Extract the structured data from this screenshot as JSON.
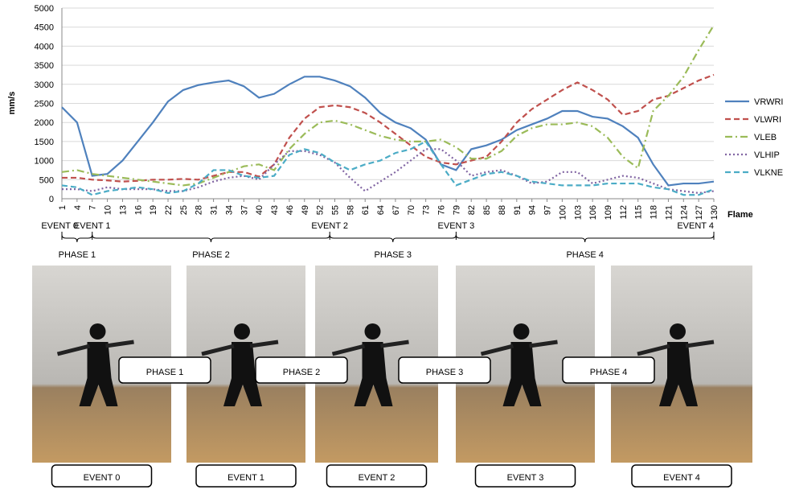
{
  "chart_data": {
    "type": "line",
    "ylabel": "mm/s",
    "xlabel": "Flame",
    "x": [
      1,
      4,
      7,
      10,
      13,
      16,
      19,
      22,
      25,
      28,
      31,
      34,
      37,
      40,
      43,
      46,
      49,
      52,
      55,
      58,
      61,
      64,
      67,
      70,
      73,
      76,
      79,
      82,
      85,
      88,
      91,
      94,
      97,
      100,
      103,
      106,
      109,
      112,
      115,
      118,
      121,
      124,
      127,
      130
    ],
    "xlim": [
      1,
      130
    ],
    "xticks": [
      1,
      4,
      7,
      10,
      13,
      16,
      19,
      22,
      25,
      28,
      31,
      34,
      37,
      40,
      43,
      46,
      49,
      52,
      55,
      58,
      61,
      64,
      67,
      70,
      73,
      76,
      79,
      82,
      85,
      88,
      91,
      94,
      97,
      100,
      103,
      106,
      109,
      112,
      115,
      118,
      121,
      124,
      127,
      130
    ],
    "ylim": [
      0,
      5000
    ],
    "yticks": [
      0,
      500,
      1000,
      1500,
      2000,
      2500,
      3000,
      3500,
      4000,
      4500,
      5000
    ],
    "grid": true,
    "legend": "right",
    "series": [
      {
        "name": "VRWRI",
        "color": "#4f81bd",
        "style": "solid",
        "values": [
          2400,
          2000,
          600,
          650,
          1000,
          1500,
          2000,
          2550,
          2850,
          2980,
          3050,
          3100,
          2950,
          2650,
          2750,
          3000,
          3200,
          3200,
          3100,
          2950,
          2650,
          2250,
          2000,
          1850,
          1550,
          900,
          750,
          1300,
          1400,
          1550,
          1800,
          1950,
          2100,
          2300,
          2300,
          2150,
          2100,
          1900,
          1600,
          900,
          350,
          400,
          400,
          450
        ]
      },
      {
        "name": "VLWRI",
        "color": "#c0504d",
        "style": "dashed",
        "values": [
          550,
          550,
          500,
          480,
          450,
          470,
          500,
          500,
          520,
          500,
          600,
          700,
          700,
          580,
          900,
          1600,
          2100,
          2400,
          2450,
          2400,
          2250,
          2000,
          1700,
          1400,
          1100,
          950,
          900,
          1000,
          1100,
          1500,
          2000,
          2350,
          2600,
          2850,
          3050,
          2850,
          2600,
          2200,
          2300,
          2600,
          2700,
          2900,
          3100,
          3250
        ]
      },
      {
        "name": "VLEB",
        "color": "#9bbb59",
        "style": "dashdot",
        "values": [
          700,
          750,
          650,
          600,
          550,
          500,
          450,
          400,
          350,
          400,
          550,
          700,
          850,
          900,
          750,
          1300,
          1700,
          2000,
          2050,
          1950,
          1800,
          1650,
          1550,
          1500,
          1500,
          1550,
          1350,
          1050,
          1050,
          1250,
          1650,
          1850,
          1950,
          1950,
          2000,
          1900,
          1600,
          1100,
          800,
          2300,
          2700,
          3200,
          3900,
          4550
        ]
      },
      {
        "name": "VLHIP",
        "color": "#8064a2",
        "style": "dotted",
        "values": [
          250,
          250,
          200,
          300,
          250,
          250,
          250,
          200,
          200,
          300,
          450,
          550,
          600,
          500,
          900,
          1250,
          1250,
          1150,
          950,
          550,
          200,
          450,
          700,
          1000,
          1300,
          1300,
          1000,
          600,
          700,
          750,
          600,
          400,
          450,
          700,
          700,
          400,
          500,
          600,
          550,
          400,
          250,
          200,
          150,
          200
        ]
      },
      {
        "name": "VLKNE",
        "color": "#4bacc6",
        "style": "dashed",
        "values": [
          350,
          300,
          100,
          200,
          250,
          300,
          250,
          150,
          200,
          400,
          750,
          750,
          600,
          550,
          600,
          1150,
          1300,
          1200,
          950,
          750,
          900,
          1000,
          1200,
          1300,
          1500,
          900,
          350,
          500,
          650,
          700,
          600,
          450,
          400,
          350,
          350,
          350,
          400,
          400,
          400,
          300,
          250,
          100,
          100,
          250
        ]
      }
    ],
    "events": [
      {
        "label": "EVENT 0",
        "x": 1
      },
      {
        "label": "EVENT 1",
        "x": 7
      },
      {
        "label": "EVENT 2",
        "x": 54
      },
      {
        "label": "EVENT 3",
        "x": 79
      },
      {
        "label": "EVENT 4",
        "x": 130
      }
    ],
    "phases": [
      "PHASE 1",
      "PHASE 2",
      "PHASE 3",
      "PHASE 4"
    ]
  }
}
